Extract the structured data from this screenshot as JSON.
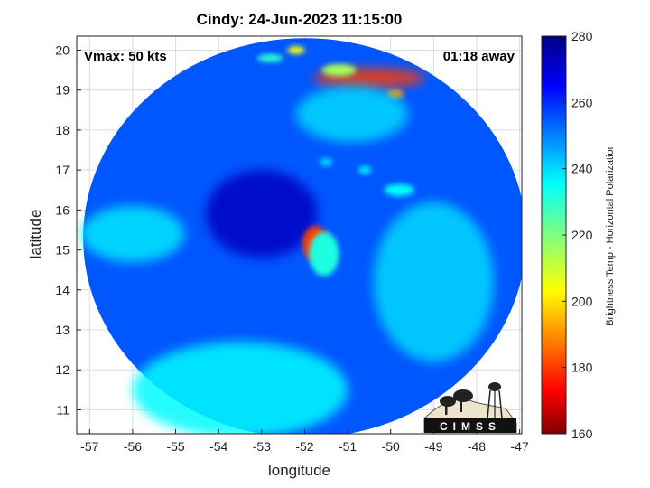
{
  "chart_data": {
    "type": "heatmap",
    "title": "Cindy: 24-Jun-2023 11:15:00",
    "annotations": {
      "vmax": "Vmax: 50 kts",
      "away": "01:18 away"
    },
    "xlabel": "longitude",
    "ylabel": "latitude",
    "xlim": [
      -57.3,
      -46.95
    ],
    "ylim": [
      10.4,
      20.35
    ],
    "x_ticks": [
      -57,
      -56,
      -55,
      -54,
      -53,
      -52,
      -51,
      -50,
      -49,
      -48,
      -47
    ],
    "y_ticks": [
      11,
      12,
      13,
      14,
      15,
      16,
      17,
      18,
      19,
      20
    ],
    "grid": true,
    "colorbar": {
      "label": "Brightness Temp - Horizontal Polarization",
      "range": [
        160,
        280
      ],
      "ticks": [
        160,
        180,
        200,
        220,
        240,
        260,
        280
      ],
      "colormap": "jet"
    },
    "swath": {
      "center_lon": -52.0,
      "center_lat": 15.3,
      "radius_lon": 5.15,
      "radius_lat": 5.0,
      "background_temp": 255
    },
    "features": [
      {
        "lon": -53.0,
        "lat": 15.9,
        "temp": 272,
        "rx": 1.3,
        "ry": 1.1,
        "desc": "cold eye region"
      },
      {
        "lon": -51.75,
        "lat": 15.15,
        "temp": 180,
        "rx": 0.3,
        "ry": 0.45,
        "desc": "convective core"
      },
      {
        "lon": -51.55,
        "lat": 14.9,
        "temp": 232,
        "rx": 0.35,
        "ry": 0.55
      },
      {
        "lon": -50.5,
        "lat": 19.3,
        "temp": 180,
        "rx": 1.3,
        "ry": 0.25
      },
      {
        "lon": -51.2,
        "lat": 19.5,
        "temp": 215,
        "rx": 0.4,
        "ry": 0.15
      },
      {
        "lon": -49.9,
        "lat": 18.9,
        "temp": 190,
        "rx": 0.2,
        "ry": 0.12
      },
      {
        "lon": -52.2,
        "lat": 20.0,
        "temp": 205,
        "rx": 0.2,
        "ry": 0.1
      },
      {
        "lon": -52.8,
        "lat": 19.8,
        "temp": 230,
        "rx": 0.3,
        "ry": 0.1
      },
      {
        "lon": -49.8,
        "lat": 16.5,
        "temp": 235,
        "rx": 0.35,
        "ry": 0.15
      },
      {
        "lon": -50.9,
        "lat": 18.4,
        "temp": 240,
        "rx": 1.3,
        "ry": 0.7
      },
      {
        "lon": -51.5,
        "lat": 17.2,
        "temp": 240,
        "rx": 0.15,
        "ry": 0.1
      },
      {
        "lon": -50.6,
        "lat": 17.0,
        "temp": 238,
        "rx": 0.15,
        "ry": 0.1
      },
      {
        "lon": -56.0,
        "lat": 15.4,
        "temp": 238,
        "rx": 1.2,
        "ry": 0.7
      },
      {
        "lon": -53.5,
        "lat": 11.5,
        "temp": 236,
        "rx": 2.5,
        "ry": 1.2
      },
      {
        "lon": -49.0,
        "lat": 14.2,
        "temp": 240,
        "rx": 1.4,
        "ry": 2.0
      }
    ]
  },
  "logo": {
    "text": "CIMSS",
    "desc": "satellite dish and water tower silhouette"
  }
}
